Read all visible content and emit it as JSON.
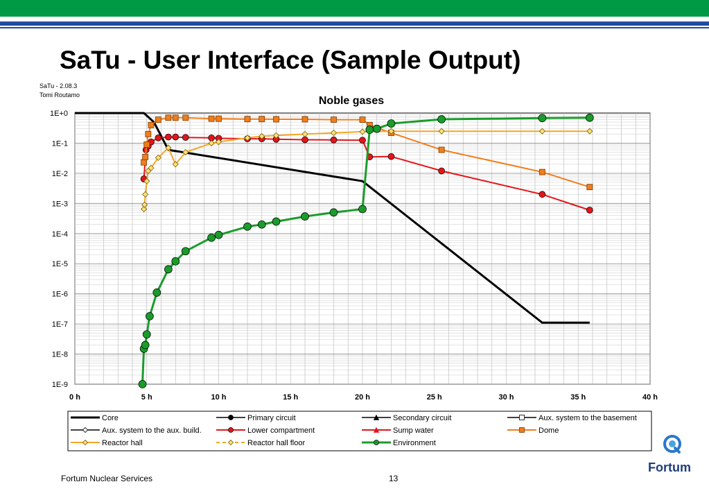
{
  "slide": {
    "title": "SaTu - User Interface (Sample Output)",
    "version": "SaTu - 2.08.3",
    "author": "Tomi Routamo",
    "footer_left": "Fortum Nuclear Services",
    "page_number": "13",
    "logo_text": "Fortum",
    "colors": {
      "top_bar": "#009a44",
      "stripe": "#1f4e9c",
      "logo": "#1f3f7a"
    }
  },
  "chart_data": {
    "type": "line",
    "title": "Noble gases",
    "y_scale": "log",
    "ylim": [
      1e-09,
      1
    ],
    "xlim": [
      0,
      40
    ],
    "grid": true,
    "x_ticks": [
      0,
      5,
      10,
      15,
      20,
      25,
      30,
      35,
      40
    ],
    "x_tick_labels": [
      "0 h",
      "5 h",
      "10 h",
      "15 h",
      "20 h",
      "25 h",
      "30 h",
      "35 h",
      "40 h"
    ],
    "y_ticks": [
      1,
      0.1,
      0.01,
      0.001,
      0.0001,
      1e-05,
      1e-06,
      1e-07,
      1e-08,
      1e-09
    ],
    "y_tick_labels": [
      "1E+0",
      "1E-1",
      "1E-2",
      "1E-3",
      "1E-4",
      "1E-5",
      "1E-6",
      "1E-7",
      "1E-8",
      "1E-9"
    ],
    "legend_position": "bottom",
    "series": [
      {
        "name": "Core",
        "color": "#000000",
        "marker": "none",
        "dash": false,
        "width": 3,
        "x": [
          0,
          4.8,
          5.5,
          6.5,
          20,
          32.5,
          35.8
        ],
        "y": [
          1,
          1,
          0.5,
          0.06,
          0.0055,
          1.1e-07,
          1.1e-07
        ]
      },
      {
        "name": "Primary circuit",
        "color": "#000000",
        "marker": "circle",
        "dash": false,
        "width": 1.5,
        "x": [],
        "y": []
      },
      {
        "name": "Secondary circuit",
        "color": "#000000",
        "marker": "triangle",
        "dash": false,
        "width": 1.5,
        "x": [],
        "y": []
      },
      {
        "name": "Aux. system to the basement",
        "color": "#000000",
        "marker": "square",
        "dash": false,
        "width": 1.5,
        "x": [],
        "y": []
      },
      {
        "name": "Aux. system to the aux. build.",
        "color": "#000000",
        "marker": "diamond",
        "dash": false,
        "width": 1.5,
        "x": [],
        "y": []
      },
      {
        "name": "Lower compartment",
        "color": "#e3151a",
        "marker": "circle",
        "dash": false,
        "width": 2,
        "x": [
          4.8,
          4.95,
          5.1,
          5.3,
          5.8,
          6.5,
          7,
          7.7,
          9.5,
          10,
          12,
          13,
          14,
          16,
          18,
          20,
          20.5,
          22,
          25.5,
          32.5,
          35.8
        ],
        "y": [
          0.0065,
          0.06,
          0.08,
          0.11,
          0.15,
          0.16,
          0.16,
          0.155,
          0.15,
          0.145,
          0.14,
          0.14,
          0.135,
          0.13,
          0.128,
          0.125,
          0.035,
          0.036,
          0.012,
          0.002,
          0.0006
        ]
      },
      {
        "name": "Sump water",
        "color": "#e3151a",
        "marker": "triangle",
        "dash": false,
        "width": 2,
        "x": [],
        "y": []
      },
      {
        "name": "Dome",
        "color": "#f07e1c",
        "marker": "square",
        "dash": false,
        "width": 2,
        "x": [
          4.8,
          4.9,
          5,
          5.1,
          5.3,
          5.8,
          6.5,
          7,
          7.7,
          9.5,
          10,
          12,
          13,
          14,
          16,
          18,
          20,
          20.5,
          22,
          25.5,
          32.5,
          35.8
        ],
        "y": [
          0.023,
          0.035,
          0.09,
          0.2,
          0.4,
          0.6,
          0.7,
          0.7,
          0.7,
          0.65,
          0.65,
          0.63,
          0.63,
          0.62,
          0.62,
          0.6,
          0.6,
          0.4,
          0.22,
          0.06,
          0.011,
          0.0035
        ]
      },
      {
        "name": "Reactor hall",
        "color": "#f5a623",
        "marker": "diamond",
        "dash": false,
        "width": 2,
        "x": [
          4.8,
          4.85,
          4.9,
          5,
          5.1,
          5.3,
          5.8,
          6.5,
          7,
          7.7,
          9.5,
          10,
          12,
          13,
          14,
          16,
          18,
          20,
          22,
          25.5,
          32.5,
          35.8
        ],
        "y": [
          0.00065,
          0.0009,
          0.002,
          0.0055,
          0.012,
          0.015,
          0.033,
          0.07,
          0.02,
          0.05,
          0.1,
          0.11,
          0.15,
          0.17,
          0.18,
          0.2,
          0.22,
          0.24,
          0.25,
          0.25,
          0.25,
          0.25
        ]
      },
      {
        "name": "Reactor hall floor",
        "color": "#f5a623",
        "marker": "diamond",
        "dash": true,
        "width": 2,
        "x": [],
        "y": []
      },
      {
        "name": "Environment",
        "color": "#1a9c2a",
        "marker": "circle",
        "dash": false,
        "width": 3,
        "x": [
          4.7,
          4.8,
          4.9,
          5,
          5.2,
          5.7,
          6.5,
          7,
          7.7,
          9.5,
          10,
          12,
          13,
          14,
          16,
          18,
          20,
          20.5,
          21,
          22,
          25.5,
          32.5,
          35.8
        ],
        "y": [
          1e-09,
          1.5e-08,
          2e-08,
          4.5e-08,
          1.8e-07,
          1.1e-06,
          6.5e-06,
          1.2e-05,
          2.6e-05,
          7.3e-05,
          9e-05,
          0.00017,
          0.0002,
          0.00025,
          0.00037,
          0.0005,
          0.00065,
          0.28,
          0.3,
          0.45,
          0.62,
          0.68,
          0.7
        ]
      }
    ]
  }
}
